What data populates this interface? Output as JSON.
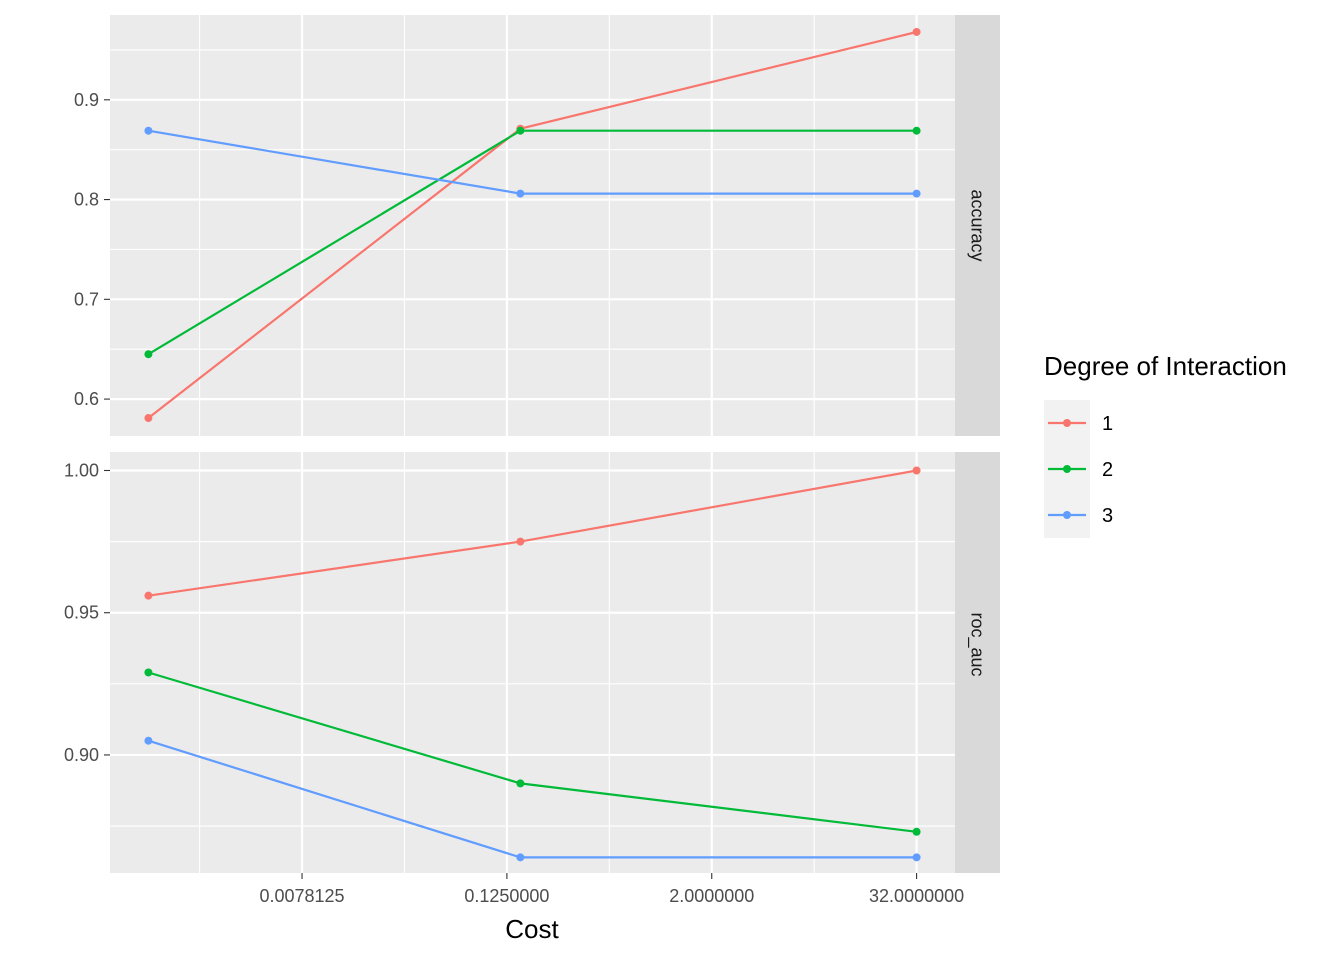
{
  "chart_data": {
    "type": "line",
    "xlabel": "Cost",
    "x_scale": "log2",
    "x_ticks": [
      {
        "value": 0.0078125,
        "label": "0.0078125"
      },
      {
        "value": 0.125,
        "label": "0.1250000"
      },
      {
        "value": 2,
        "label": "2.0000000"
      },
      {
        "value": 32,
        "label": "32.0000000"
      }
    ],
    "x": [
      0.0009765625,
      0.15,
      32
    ],
    "legend": {
      "title": "Degree of Interaction",
      "position": "right"
    },
    "series": [
      {
        "name": "1",
        "color": "#F8766D"
      },
      {
        "name": "2",
        "color": "#00BA38"
      },
      {
        "name": "3",
        "color": "#619CFF"
      }
    ],
    "facets": [
      {
        "label": "accuracy",
        "ylim": [
          0.563,
          0.985
        ],
        "y_ticks": [
          {
            "value": 0.6,
            "label": "0.6"
          },
          {
            "value": 0.7,
            "label": "0.7"
          },
          {
            "value": 0.8,
            "label": "0.8"
          },
          {
            "value": 0.9,
            "label": "0.9"
          }
        ],
        "values": {
          "1": [
            0.581,
            0.871,
            0.968
          ],
          "2": [
            0.645,
            0.869,
            0.869
          ],
          "3": [
            0.869,
            0.806,
            0.806
          ]
        }
      },
      {
        "label": "roc_auc",
        "ylim": [
          0.8585,
          1.0065
        ],
        "y_ticks": [
          {
            "value": 0.9,
            "label": "0.90"
          },
          {
            "value": 0.95,
            "label": "0.95"
          },
          {
            "value": 1.0,
            "label": "1.00"
          }
        ],
        "values": {
          "1": [
            0.956,
            0.975,
            1.0
          ],
          "2": [
            0.929,
            0.89,
            0.873
          ],
          "3": [
            0.905,
            0.864,
            0.864
          ]
        }
      }
    ]
  }
}
